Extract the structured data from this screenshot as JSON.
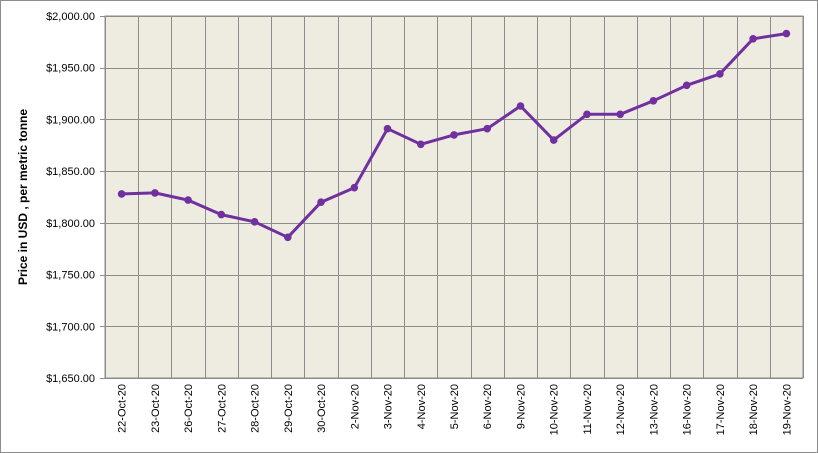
{
  "chart_data": {
    "type": "line",
    "title": "",
    "xlabel": "",
    "ylabel": "Price in USD , per metric tonne",
    "categories": [
      "22-Oct-20",
      "23-Oct-20",
      "26-Oct-20",
      "27-Oct-20",
      "28-Oct-20",
      "29-Oct-20",
      "30-Oct-20",
      "2-Nov-20",
      "3-Nov-20",
      "4-Nov-20",
      "5-Nov-20",
      "6-Nov-20",
      "9-Nov-20",
      "10-Nov-20",
      "11-Nov-20",
      "12-Nov-20",
      "13-Nov-20",
      "16-Nov-20",
      "17-Nov-20",
      "18-Nov-20",
      "19-Nov-20"
    ],
    "series": [
      {
        "values": [
          1828,
          1829,
          1822,
          1808,
          1801,
          1786,
          1820,
          1834,
          1891,
          1876,
          1885,
          1891,
          1913,
          1880,
          1905,
          1905,
          1918,
          1933,
          1944,
          1978,
          1983
        ]
      }
    ],
    "ylim": [
      1650,
      2000
    ],
    "yticks": [
      1650,
      1700,
      1750,
      1800,
      1850,
      1900,
      1950,
      2000
    ],
    "ytick_labels": [
      "$1,650.00",
      "$1,700.00",
      "$1,750.00",
      "$1,800.00",
      "$1,850.00",
      "$1,900.00",
      "$1,950.00",
      "$2,000.00"
    ],
    "grid": true,
    "legend": "none",
    "colors": {
      "line": "#7030A0",
      "plot_bg": "#EEECE1",
      "grid": "#8C8C8C",
      "border": "#8C8C8C"
    }
  }
}
